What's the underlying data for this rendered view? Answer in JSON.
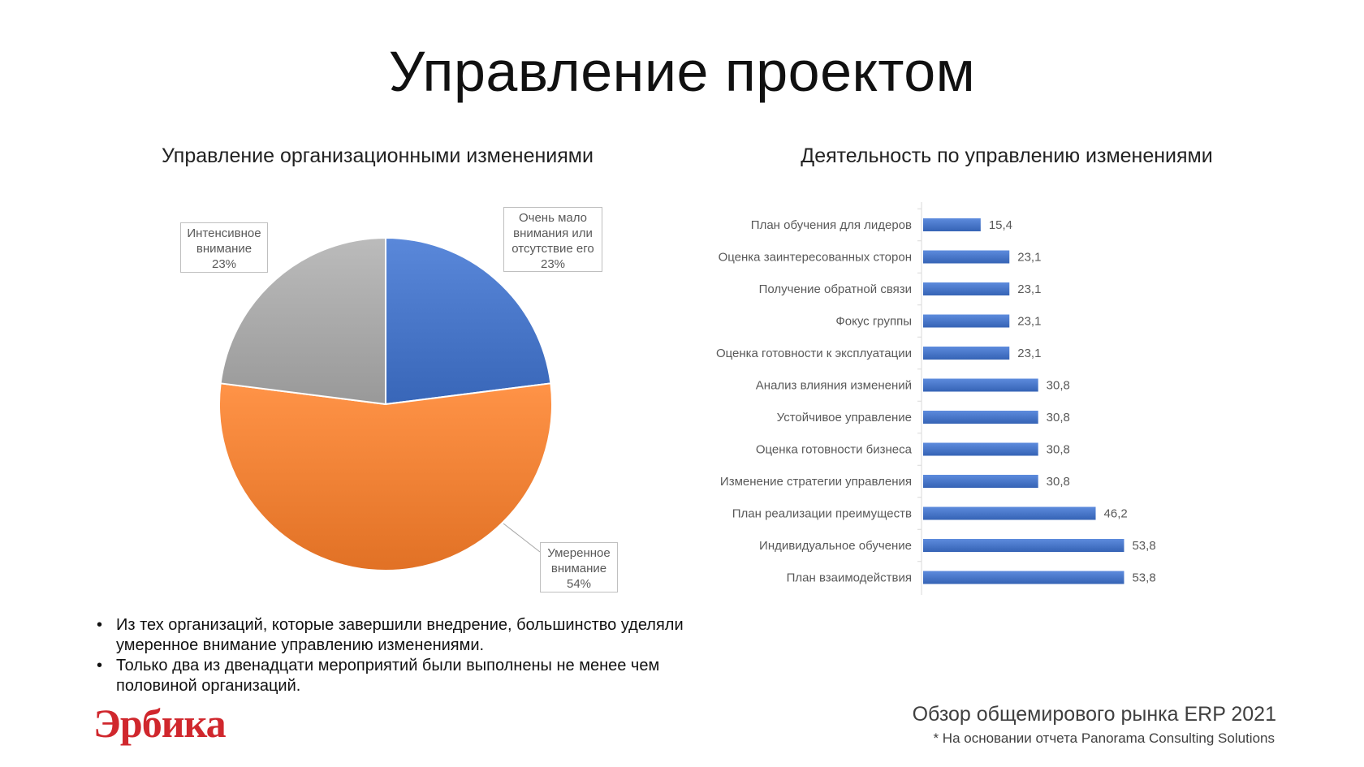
{
  "slide": {
    "title": "Управление проектом",
    "bullets": [
      "Из тех организаций, которые завершили внедрение, большинство уделяли умеренное внимание управлению изменениями.",
      "Только два из двенадцати мероприятий были выполнены не менее чем половиной организаций."
    ],
    "logo_text": "Эрбика",
    "report_title": "Обзор общемирового рынка ERP 2021",
    "report_note": "* На основании отчета Panorama Consulting Solutions"
  },
  "chart_data": [
    {
      "type": "pie",
      "title": "Управление организационными изменениями",
      "slices": [
        {
          "label_lines": [
            "Очень мало",
            "внимания или",
            "отсутствие его"
          ],
          "percent_label": "23%",
          "value": 23,
          "color": "#4472C4"
        },
        {
          "label_lines": [
            "Умеренное",
            "внимание"
          ],
          "percent_label": "54%",
          "value": 54,
          "color": "#ED7D31"
        },
        {
          "label_lines": [
            "Интенсивное",
            "внимание"
          ],
          "percent_label": "23%",
          "value": 23,
          "color": "#A5A5A5"
        }
      ],
      "start_angle_deg": 0,
      "direction": "clockwise",
      "legend": "none"
    },
    {
      "type": "bar",
      "orientation": "horizontal",
      "title": "Деятельность по управлению изменениями",
      "color": "#4472C4",
      "categories": [
        "План обучения для лидеров",
        "Оценка заинтересованных сторон",
        "Получение обратной связи",
        "Фокус группы",
        "Оценка готовности к эксплуатации",
        "Анализ влияния изменений",
        "Устойчивое управление",
        "Оценка готовности бизнеса",
        "Изменение стратегии управления",
        "План реализации преимуществ",
        "Индивидуальное обучение",
        "План взаимодействия"
      ],
      "values": [
        15.4,
        23.1,
        23.1,
        23.1,
        23.1,
        30.8,
        30.8,
        30.8,
        30.8,
        46.2,
        53.8,
        53.8
      ],
      "value_labels": [
        "15,4",
        "23,1",
        "23,1",
        "23,1",
        "23,1",
        "30,8",
        "30,8",
        "30,8",
        "30,8",
        "46,2",
        "53,8",
        "53,8"
      ],
      "xlim": [
        0,
        60
      ],
      "grid": false,
      "legend": "none"
    }
  ]
}
